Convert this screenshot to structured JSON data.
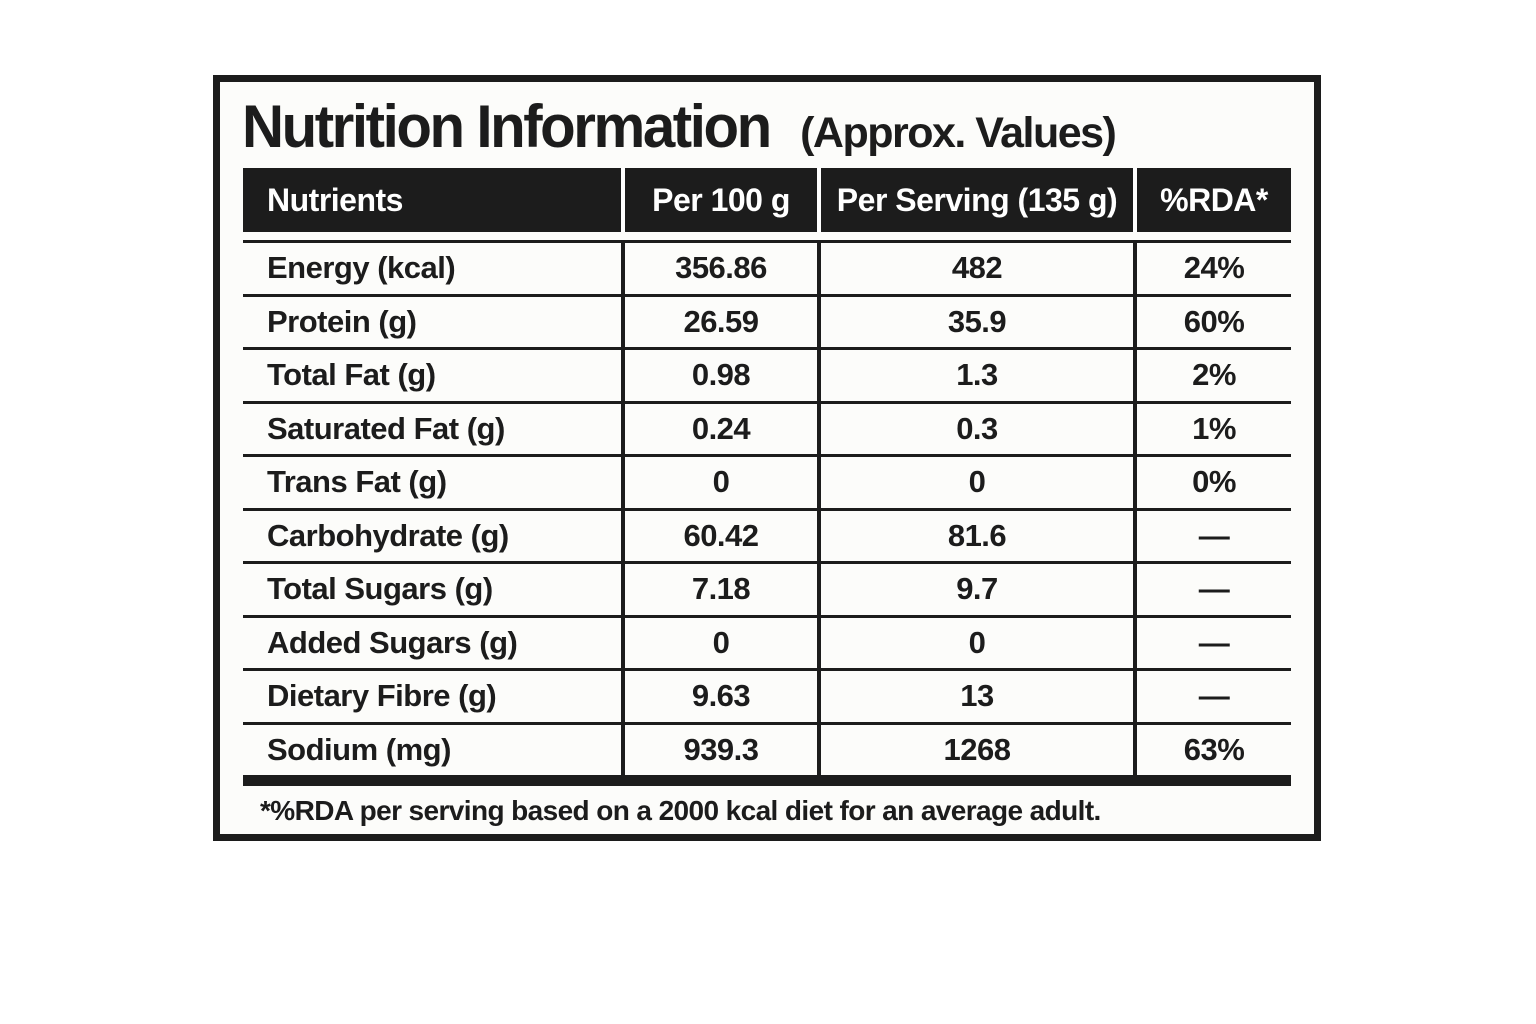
{
  "title": {
    "main": "Nutrition Information",
    "suffix": "(Approx. Values)"
  },
  "table": {
    "headers": [
      "Nutrients",
      "Per 100 g",
      "Per Serving (135 g)",
      "%RDA*"
    ],
    "rows": [
      {
        "nutrient": "Energy (kcal)",
        "per_100g": "356.86",
        "per_serving": "482",
        "rda": "24%"
      },
      {
        "nutrient": "Protein (g)",
        "per_100g": "26.59",
        "per_serving": "35.9",
        "rda": "60%"
      },
      {
        "nutrient": "Total Fat (g)",
        "per_100g": "0.98",
        "per_serving": "1.3",
        "rda": "2%"
      },
      {
        "nutrient": "Saturated Fat (g)",
        "per_100g": "0.24",
        "per_serving": "0.3",
        "rda": "1%"
      },
      {
        "nutrient": "Trans Fat (g)",
        "per_100g": "0",
        "per_serving": "0",
        "rda": "0%"
      },
      {
        "nutrient": "Carbohydrate (g)",
        "per_100g": "60.42",
        "per_serving": "81.6",
        "rda": "—"
      },
      {
        "nutrient": "Total Sugars (g)",
        "per_100g": "7.18",
        "per_serving": "9.7",
        "rda": "—"
      },
      {
        "nutrient": "Added Sugars (g)",
        "per_100g": "0",
        "per_serving": "0",
        "rda": "—"
      },
      {
        "nutrient": "Dietary Fibre (g)",
        "per_100g": "9.63",
        "per_serving": "13",
        "rda": "—"
      },
      {
        "nutrient": "Sodium (mg)",
        "per_100g": "939.3",
        "per_serving": "1268",
        "rda": "63%"
      }
    ]
  },
  "footnote": {
    "text": "*%RDA per serving based on a 2000 kcal diet for an average adult."
  },
  "colors": {
    "ink": "#1c1c1c",
    "header_bg": "#1c1c1c",
    "header_text": "#ffffff",
    "panel_bg": "#fcfcfa",
    "page_bg": "#ffffff"
  }
}
